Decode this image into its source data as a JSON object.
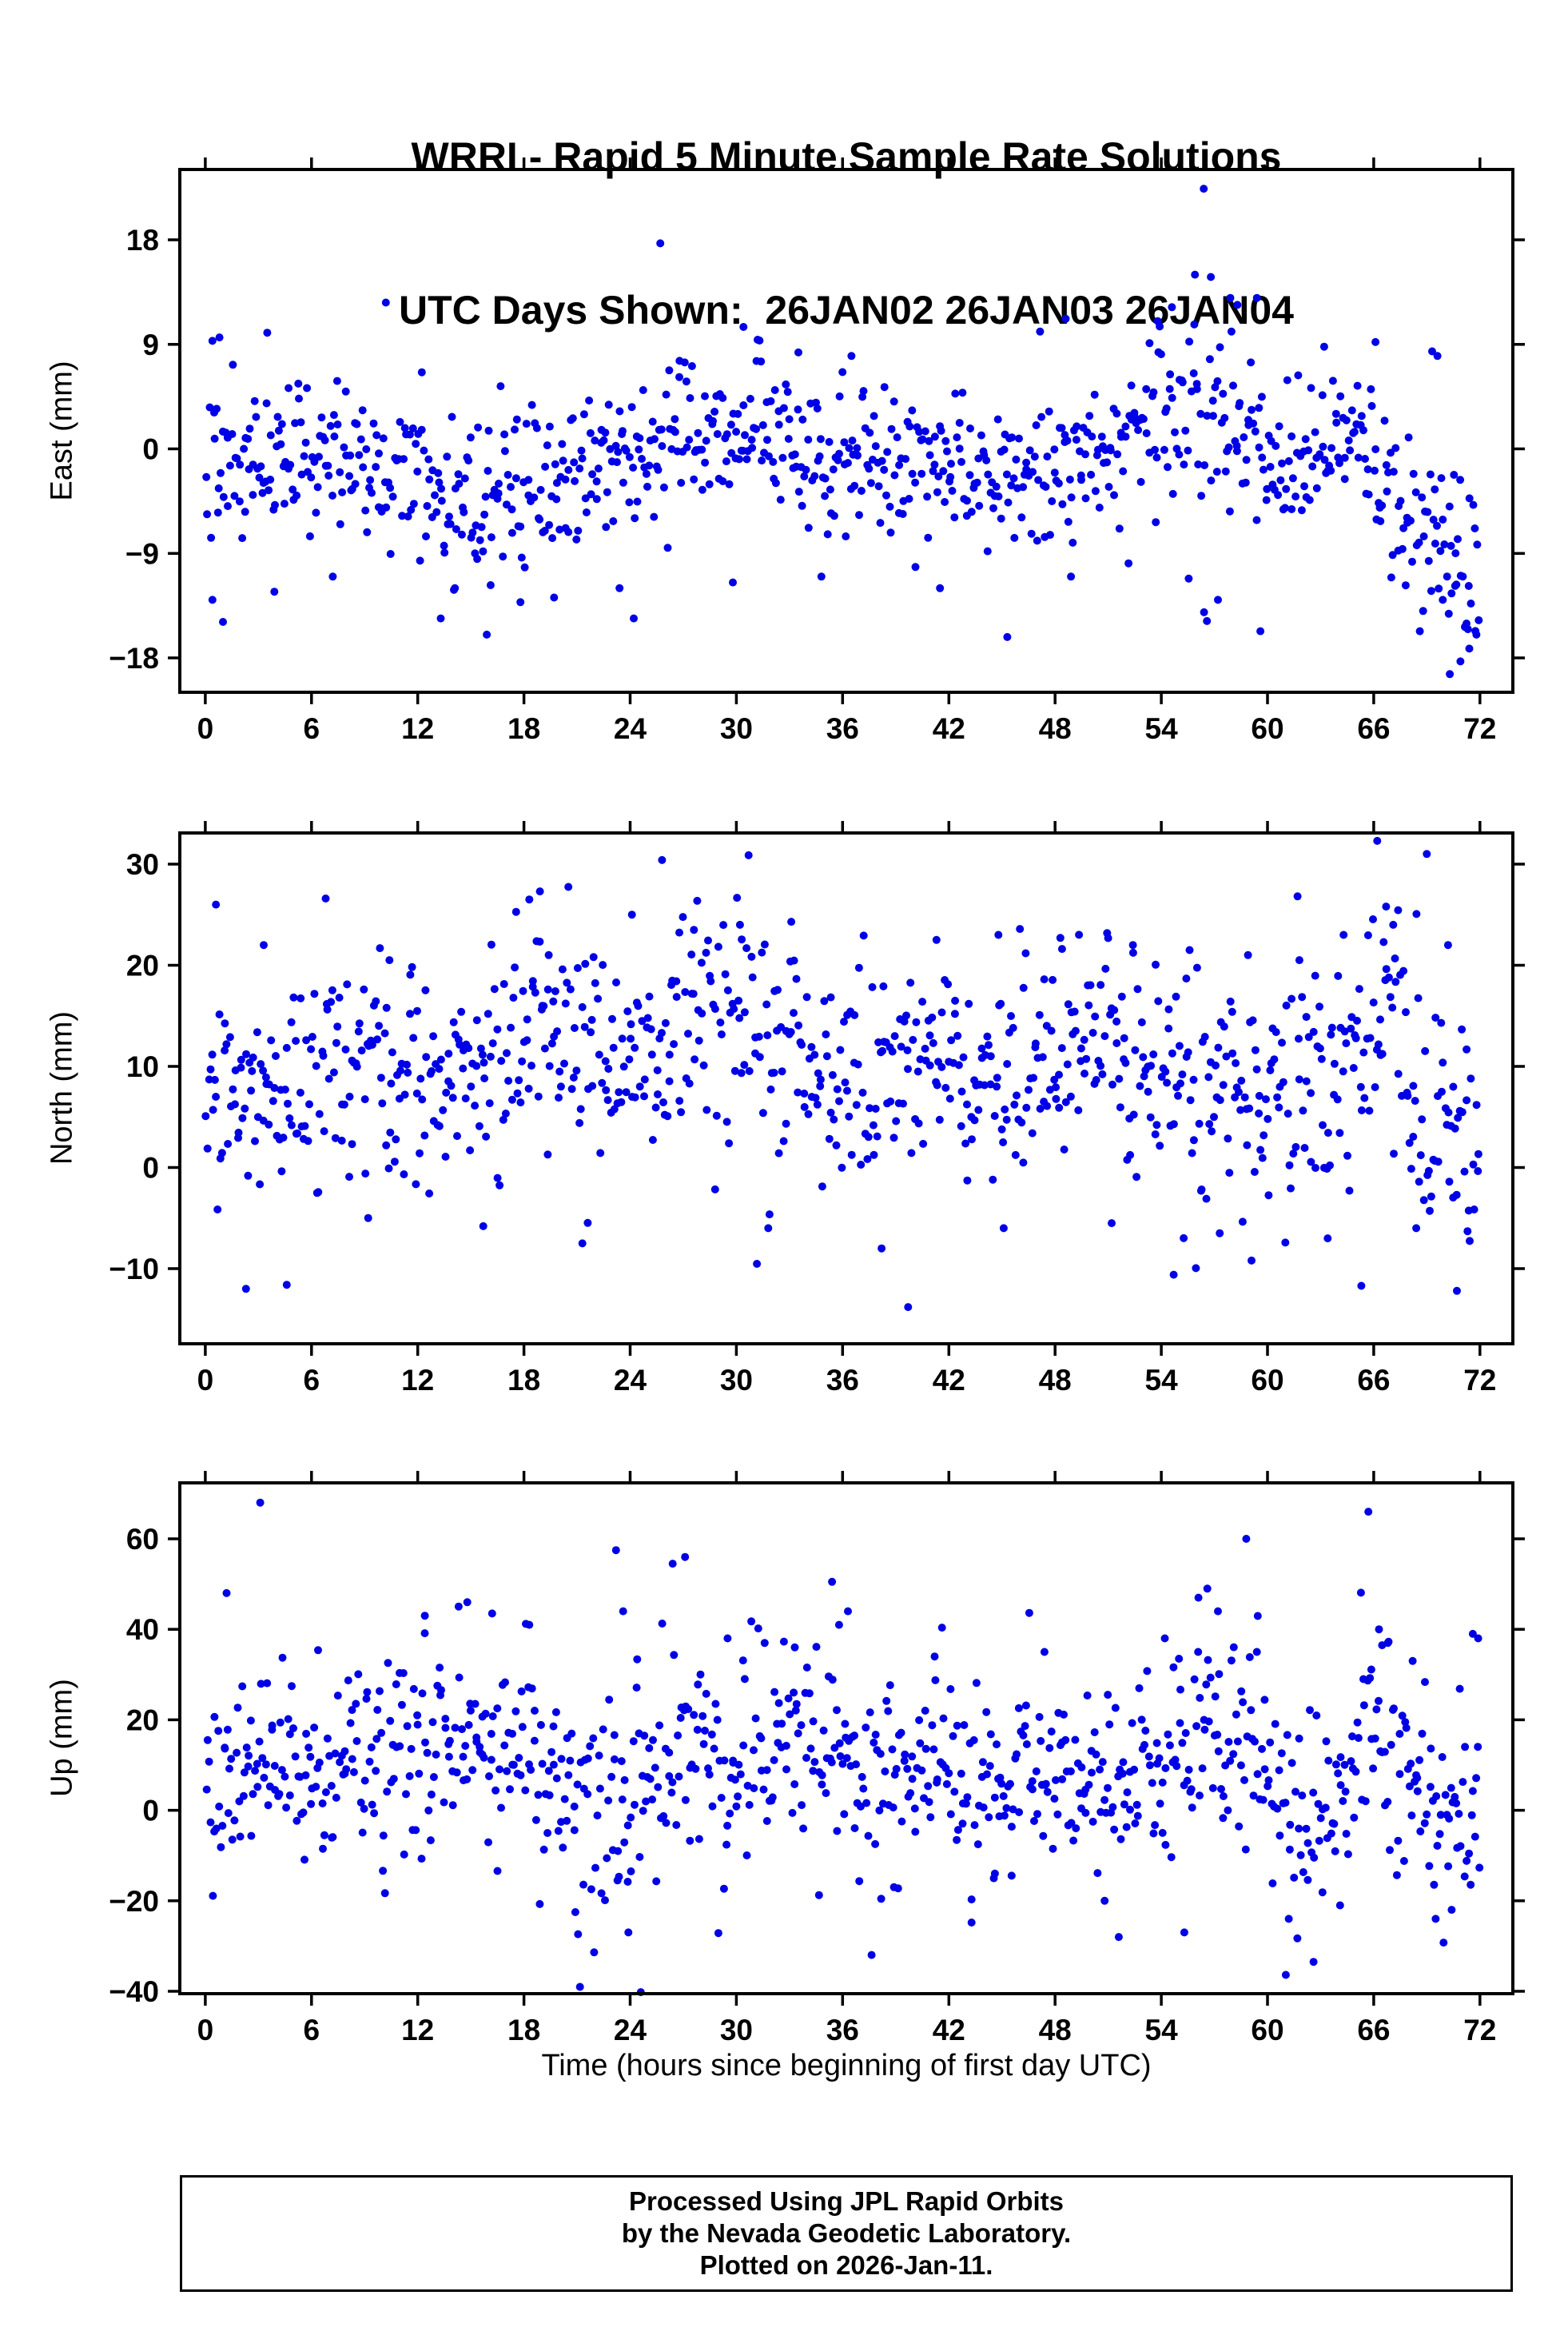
{
  "title": {
    "line1": "WRRI - Rapid 5 Minute Sample Rate Solutions",
    "line2": "UTC Days Shown:  26JAN02 26JAN03 26JAN04"
  },
  "xlabel": "Time (hours since beginning of first day UTC)",
  "footer": {
    "line1": "Processed Using JPL Rapid Orbits",
    "line2": "by the Nevada Geodetic Laboratory.",
    "line3": "Plotted on 2026-Jan-11."
  },
  "style": {
    "point_color": "#0000E6",
    "frame_color": "#000000",
    "background": "#FFFFFF"
  },
  "chart_data": [
    {
      "type": "scatter",
      "name": "east",
      "ylabel": "East (mm)",
      "x_unit": "hours",
      "y_unit": "mm",
      "xlim": [
        -1.44,
        73.86
      ],
      "ylim": [
        -20.96,
        24.06
      ],
      "xticks": [
        0,
        6,
        12,
        18,
        24,
        30,
        36,
        42,
        48,
        54,
        60,
        66,
        72
      ],
      "yticks": [
        -18,
        -9,
        0,
        9,
        18
      ],
      "marker_color": "#0000E6",
      "n_points": 860,
      "x_start": 0.05,
      "x_end": 71.95,
      "seed": 42,
      "mean_keyframes": [
        [
          0,
          -1.5
        ],
        [
          1,
          0.3
        ],
        [
          3,
          -0.8
        ],
        [
          6,
          -0.6
        ],
        [
          9,
          -1.6
        ],
        [
          12,
          -1.2
        ],
        [
          14,
          -4
        ],
        [
          17,
          -4.4
        ],
        [
          19,
          -3.4
        ],
        [
          21,
          -2.4
        ],
        [
          23,
          -1
        ],
        [
          25,
          0.5
        ],
        [
          27,
          0.6
        ],
        [
          29,
          1
        ],
        [
          31,
          1.4
        ],
        [
          33,
          0
        ],
        [
          35,
          -0.5
        ],
        [
          37,
          -1.2
        ],
        [
          39,
          -1.6
        ],
        [
          41,
          -2
        ],
        [
          43,
          -1.2
        ],
        [
          45,
          -2
        ],
        [
          47,
          -2
        ],
        [
          49,
          -1
        ],
        [
          51,
          0
        ],
        [
          53,
          1.2
        ],
        [
          55,
          2.6
        ],
        [
          57,
          3
        ],
        [
          59,
          0.6
        ],
        [
          61,
          -1
        ],
        [
          63,
          -0.6
        ],
        [
          65,
          0
        ],
        [
          66,
          -1
        ],
        [
          67,
          -3
        ],
        [
          68,
          -5
        ],
        [
          69,
          -7
        ],
        [
          70,
          -9.5
        ],
        [
          71,
          -10.5
        ],
        [
          72,
          -8
        ]
      ],
      "std_keyframes": [
        [
          0,
          3.8
        ],
        [
          4,
          3.1
        ],
        [
          16,
          3.4
        ],
        [
          30,
          3.0
        ],
        [
          44,
          3.1
        ],
        [
          52,
          3.3
        ],
        [
          56,
          4.8
        ],
        [
          59,
          4.2
        ],
        [
          63,
          3.0
        ],
        [
          67,
          3.4
        ],
        [
          70,
          4.3
        ],
        [
          72,
          4.3
        ]
      ],
      "outliers": {
        "prob": 0.012,
        "base": 2.4,
        "spread": 1.6
      },
      "notable_points": [
        [
          0.4,
          9.3
        ],
        [
          0.8,
          9.6
        ],
        [
          3.5,
          10
        ],
        [
          10.2,
          12.6
        ],
        [
          25.7,
          17.7
        ],
        [
          56.4,
          22.4
        ],
        [
          55.9,
          15
        ],
        [
          56.8,
          14.8
        ],
        [
          57.9,
          13
        ],
        [
          58.3,
          12.4
        ],
        [
          54.6,
          12.2
        ],
        [
          59.4,
          13
        ],
        [
          53.8,
          11
        ],
        [
          48.6,
          11.2
        ],
        [
          30.4,
          10.5
        ],
        [
          31.2,
          9.4
        ],
        [
          33.5,
          8.3
        ],
        [
          36.5,
          8
        ],
        [
          63.2,
          8.8
        ],
        [
          66.1,
          9.2
        ],
        [
          69.3,
          8.4
        ],
        [
          69.6,
          8
        ],
        [
          1.0,
          -14.9
        ],
        [
          3.9,
          -12.3
        ],
        [
          7.2,
          -11
        ],
        [
          13.3,
          -14.6
        ],
        [
          14.1,
          -12
        ],
        [
          15.9,
          -16
        ],
        [
          17.8,
          -13.2
        ],
        [
          19.7,
          -12.8
        ],
        [
          24.2,
          -14.6
        ],
        [
          23.4,
          -12
        ],
        [
          29.8,
          -11.5
        ],
        [
          34.8,
          -11
        ],
        [
          45.3,
          -16.2
        ],
        [
          41.5,
          -12
        ],
        [
          48.9,
          -11
        ],
        [
          57.2,
          -13
        ],
        [
          59.6,
          -15.7
        ],
        [
          70.3,
          -19.4
        ],
        [
          70.9,
          -18.3
        ],
        [
          71.4,
          -17.2
        ],
        [
          71.8,
          -16
        ],
        [
          69.9,
          -13
        ],
        [
          70.6,
          -11.8
        ]
      ]
    },
    {
      "type": "scatter",
      "name": "north",
      "ylabel": "North (mm)",
      "x_unit": "hours",
      "y_unit": "mm",
      "xlim": [
        -1.44,
        73.86
      ],
      "ylim": [
        -17.43,
        33.08
      ],
      "xticks": [
        0,
        6,
        12,
        18,
        24,
        30,
        36,
        42,
        48,
        54,
        60,
        66,
        72
      ],
      "yticks": [
        -10,
        0,
        10,
        20,
        30
      ],
      "marker_color": "#0000E6",
      "n_points": 860,
      "x_start": 0.05,
      "x_end": 71.95,
      "seed": 1337,
      "mean_keyframes": [
        [
          0,
          7
        ],
        [
          2,
          8
        ],
        [
          4,
          7
        ],
        [
          6,
          9
        ],
        [
          8,
          9
        ],
        [
          10,
          9.5
        ],
        [
          12,
          8
        ],
        [
          14,
          9
        ],
        [
          16,
          10
        ],
        [
          18,
          13.5
        ],
        [
          19,
          15
        ],
        [
          20,
          12
        ],
        [
          22,
          10
        ],
        [
          24,
          11
        ],
        [
          26,
          13
        ],
        [
          28,
          14
        ],
        [
          30,
          13
        ],
        [
          32,
          12
        ],
        [
          34,
          9.5
        ],
        [
          36,
          8
        ],
        [
          38,
          9
        ],
        [
          40,
          9
        ],
        [
          42,
          10
        ],
        [
          44,
          9
        ],
        [
          46,
          8.5
        ],
        [
          48,
          9
        ],
        [
          50,
          11
        ],
        [
          52,
          11
        ],
        [
          54,
          9
        ],
        [
          56,
          7
        ],
        [
          58,
          6
        ],
        [
          60,
          8
        ],
        [
          62,
          8
        ],
        [
          64,
          9
        ],
        [
          66,
          12
        ],
        [
          67,
          13
        ],
        [
          68,
          9
        ],
        [
          69,
          6
        ],
        [
          70,
          3
        ],
        [
          71,
          4.5
        ],
        [
          72,
          7
        ]
      ],
      "std_keyframes": [
        [
          0,
          4.8
        ],
        [
          12,
          5
        ],
        [
          20,
          5.6
        ],
        [
          32,
          5.2
        ],
        [
          44,
          5
        ],
        [
          56,
          5.4
        ],
        [
          64,
          6
        ],
        [
          72,
          6.2
        ]
      ],
      "outliers": {
        "prob": 0.012,
        "base": 2.2,
        "spread": 1.4
      },
      "notable_points": [
        [
          0.6,
          26
        ],
        [
          3.3,
          22
        ],
        [
          6.8,
          26.6
        ],
        [
          10.4,
          20.5
        ],
        [
          18.3,
          26.5
        ],
        [
          18.9,
          27.3
        ],
        [
          19.4,
          21
        ],
        [
          25.8,
          30.4
        ],
        [
          24.1,
          25
        ],
        [
          27.6,
          23.5
        ],
        [
          30.2,
          24
        ],
        [
          33.1,
          24.3
        ],
        [
          41.3,
          22.5
        ],
        [
          44.8,
          23
        ],
        [
          48.3,
          22.7
        ],
        [
          52.4,
          22
        ],
        [
          55.6,
          21.5
        ],
        [
          58.9,
          21
        ],
        [
          61.8,
          20.5
        ],
        [
          66.2,
          32.3
        ],
        [
          66.7,
          25.8
        ],
        [
          67.1,
          24
        ],
        [
          69.0,
          31
        ],
        [
          70.2,
          22
        ],
        [
          64.3,
          23
        ],
        [
          2.3,
          -12
        ],
        [
          4.6,
          -11.6
        ],
        [
          9.2,
          -5
        ],
        [
          15.7,
          -5.8
        ],
        [
          21.3,
          -7.5
        ],
        [
          31.8,
          -6
        ],
        [
          38.2,
          -8
        ],
        [
          39.7,
          -13.8
        ],
        [
          45.1,
          -6
        ],
        [
          51.2,
          -5.5
        ],
        [
          54.7,
          -10.6
        ],
        [
          57.3,
          -6.5
        ],
        [
          59.1,
          -9.2
        ],
        [
          63.4,
          -7
        ],
        [
          65.3,
          -11.7
        ],
        [
          68.4,
          -6
        ],
        [
          70.7,
          -12.2
        ],
        [
          71.3,
          -6.3
        ]
      ]
    },
    {
      "type": "scatter",
      "name": "up",
      "ylabel": "Up (mm)",
      "x_unit": "hours",
      "y_unit": "mm",
      "xlim": [
        -1.44,
        73.86
      ],
      "ylim": [
        -40.53,
        72.37
      ],
      "xticks": [
        0,
        6,
        12,
        18,
        24,
        30,
        36,
        42,
        48,
        54,
        60,
        66,
        72
      ],
      "yticks": [
        -40,
        -20,
        0,
        20,
        40,
        60
      ],
      "marker_color": "#0000E6",
      "n_points": 860,
      "x_start": 0.05,
      "x_end": 71.95,
      "seed": 2024,
      "mean_keyframes": [
        [
          0,
          8
        ],
        [
          2,
          10
        ],
        [
          4,
          9
        ],
        [
          6,
          8
        ],
        [
          8,
          11
        ],
        [
          10,
          12
        ],
        [
          12,
          13
        ],
        [
          14,
          12.5
        ],
        [
          16,
          13
        ],
        [
          18,
          11
        ],
        [
          20,
          6
        ],
        [
          21,
          3
        ],
        [
          22,
          0
        ],
        [
          23,
          -2
        ],
        [
          24,
          9
        ],
        [
          25,
          13
        ],
        [
          26,
          14
        ],
        [
          27,
          13
        ],
        [
          28,
          11
        ],
        [
          30,
          11
        ],
        [
          32,
          12
        ],
        [
          33,
          14
        ],
        [
          34,
          15
        ],
        [
          35,
          13
        ],
        [
          36,
          9
        ],
        [
          37,
          6.5
        ],
        [
          38,
          5
        ],
        [
          40,
          5
        ],
        [
          42,
          6
        ],
        [
          44,
          5
        ],
        [
          46,
          8
        ],
        [
          48,
          10
        ],
        [
          50,
          9
        ],
        [
          52,
          5
        ],
        [
          54,
          8
        ],
        [
          55,
          13
        ],
        [
          56,
          18
        ],
        [
          57,
          16
        ],
        [
          58,
          14
        ],
        [
          59,
          12
        ],
        [
          60,
          10
        ],
        [
          61,
          5
        ],
        [
          62,
          2
        ],
        [
          63,
          3
        ],
        [
          64,
          5
        ],
        [
          65,
          12
        ],
        [
          66,
          21
        ],
        [
          67,
          15
        ],
        [
          68,
          5
        ],
        [
          69,
          0.5
        ],
        [
          70,
          -2
        ],
        [
          71,
          0
        ],
        [
          72,
          5
        ]
      ],
      "std_keyframes": [
        [
          0,
          9.5
        ],
        [
          12,
          11
        ],
        [
          20,
          12
        ],
        [
          24,
          10
        ],
        [
          34,
          11
        ],
        [
          44,
          9.5
        ],
        [
          52,
          10
        ],
        [
          58,
          12
        ],
        [
          62,
          11
        ],
        [
          66,
          12
        ],
        [
          70,
          10
        ],
        [
          72,
          10
        ]
      ],
      "outliers": {
        "prob": 0.018,
        "base": 2.2,
        "spread": 1.5
      },
      "notable_points": [
        [
          3.1,
          68
        ],
        [
          1.2,
          48
        ],
        [
          12.4,
          43
        ],
        [
          14.8,
          46
        ],
        [
          16.2,
          43.5
        ],
        [
          18.3,
          41
        ],
        [
          20.9,
          -22.5
        ],
        [
          23.2,
          57.5
        ],
        [
          23.6,
          44
        ],
        [
          24.6,
          -40.2
        ],
        [
          23.9,
          -27
        ],
        [
          26.4,
          54.5
        ],
        [
          27.1,
          56
        ],
        [
          29.5,
          38
        ],
        [
          33.3,
          36
        ],
        [
          35.4,
          50.5
        ],
        [
          35.8,
          41
        ],
        [
          36.3,
          44
        ],
        [
          38.9,
          -17
        ],
        [
          41.2,
          34
        ],
        [
          44.6,
          -14
        ],
        [
          47.4,
          35
        ],
        [
          50.8,
          -20
        ],
        [
          51.6,
          -28
        ],
        [
          54.2,
          38
        ],
        [
          55.3,
          -27
        ],
        [
          56.1,
          47
        ],
        [
          56.6,
          49
        ],
        [
          57.2,
          44
        ],
        [
          58.8,
          60
        ],
        [
          59.4,
          35
        ],
        [
          61.2,
          -24
        ],
        [
          62.6,
          -33.5
        ],
        [
          64.1,
          -21
        ],
        [
          65.7,
          66
        ],
        [
          66.3,
          40
        ],
        [
          66.8,
          37
        ],
        [
          68.2,
          33
        ],
        [
          69.5,
          -24
        ],
        [
          70.4,
          -22
        ],
        [
          71.6,
          39
        ],
        [
          71.9,
          38
        ]
      ]
    }
  ]
}
